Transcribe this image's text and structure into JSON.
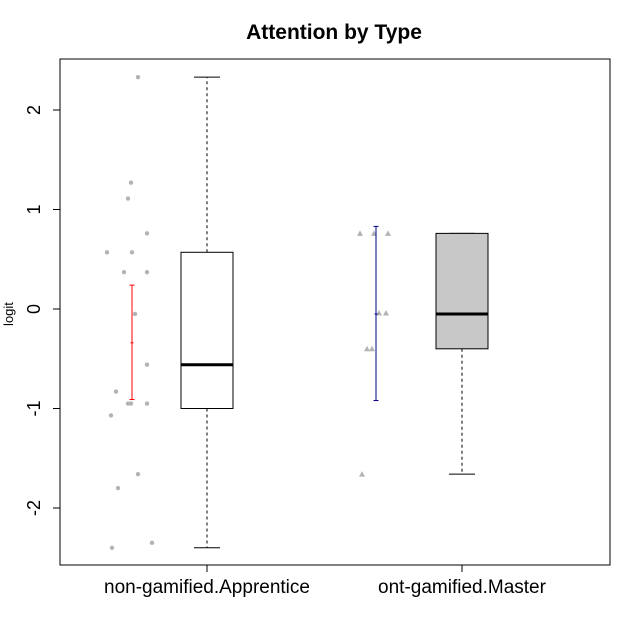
{
  "chart_data": {
    "type": "box",
    "title": "Attention by Type",
    "xlabel": "",
    "ylabel": "logit",
    "ylim": [
      -2.6,
      2.5
    ],
    "yticks": [
      -2,
      -1,
      0,
      1,
      2
    ],
    "grid": false,
    "legend": "none",
    "colors": {
      "points": "#b3b3b3",
      "errorbar_1": "#ff0000",
      "errorbar_2": "#00008b",
      "box_fill_1": "#ffffff",
      "box_fill_2": "#c8c8c8",
      "outline": "#000000",
      "whisker": "#808080"
    },
    "categories": [
      "non-gamified.Apprentice",
      "ont-gamified.Master"
    ],
    "boxes": [
      {
        "category": "non-gamified.Apprentice",
        "whisker_low": -2.4,
        "q1": -1.0,
        "median": -0.56,
        "q3": 0.57,
        "whisker_high": 2.33,
        "mean": -0.34,
        "mean_ci": [
          -0.91,
          0.24
        ]
      },
      {
        "category": "ont-gamified.Master",
        "whisker_low": -1.66,
        "q1": -0.4,
        "median": -0.05,
        "q3": 0.76,
        "whisker_high": 0.76,
        "mean": -0.05,
        "mean_ci": [
          -0.92,
          0.83
        ]
      }
    ],
    "points": [
      {
        "category": "non-gamified.Apprentice",
        "marker": "circle",
        "values": [
          2.33,
          1.27,
          1.11,
          0.76,
          0.57,
          0.57,
          0.37,
          0.37,
          -0.05,
          -0.56,
          -0.83,
          -0.95,
          -0.95,
          -0.95,
          -1.07,
          -1.66,
          -1.8,
          -2.35,
          -2.4
        ]
      },
      {
        "category": "ont-gamified.Master",
        "marker": "triangle",
        "values": [
          0.76,
          0.76,
          0.76,
          -0.04,
          -0.04,
          -0.4,
          -0.4,
          -1.66
        ]
      }
    ]
  }
}
